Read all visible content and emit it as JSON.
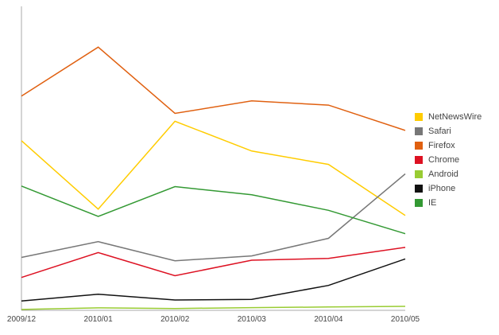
{
  "chart_data": {
    "type": "line",
    "title": "",
    "xlabel": "",
    "ylabel": "",
    "x": [
      "2009/12",
      "2010/01",
      "2010/02",
      "2010/03",
      "2010/04",
      "2010/05"
    ],
    "ylim": [
      0,
      100
    ],
    "grid": false,
    "legend_position": "right",
    "series": [
      {
        "name": "NetNewsWire",
        "color": "#ffcc00",
        "values": [
          55.8,
          33.3,
          62.2,
          52.4,
          48.0,
          31.2
        ]
      },
      {
        "name": "Safari",
        "color": "#777777",
        "values": [
          17.4,
          22.6,
          16.3,
          17.9,
          23.7,
          44.9
        ]
      },
      {
        "name": "Firefox",
        "color": "#e06010",
        "values": [
          70.5,
          86.6,
          64.8,
          68.9,
          67.5,
          59.2
        ]
      },
      {
        "name": "Chrome",
        "color": "#dd1122",
        "values": [
          10.8,
          19.0,
          11.4,
          16.5,
          17.1,
          20.7
        ]
      },
      {
        "name": "Android",
        "color": "#99cc33",
        "values": [
          0.3,
          0.8,
          0.6,
          0.9,
          1.1,
          1.3
        ]
      },
      {
        "name": "iPhone",
        "color": "#111111",
        "values": [
          3.1,
          5.3,
          3.4,
          3.6,
          8.2,
          16.9
        ]
      },
      {
        "name": "IE",
        "color": "#339933",
        "values": [
          40.9,
          30.9,
          40.7,
          38.0,
          32.9,
          25.2
        ]
      }
    ]
  }
}
